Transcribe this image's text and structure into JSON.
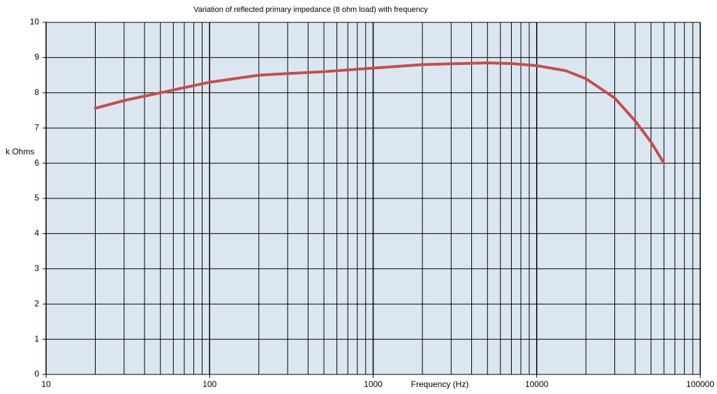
{
  "chart_data": {
    "type": "line",
    "title": "Variation of reflected primary impedance (8 ohm load) with frequency",
    "xlabel": "Frequency (Hz)",
    "ylabel": "k Ohms",
    "xscale": "log",
    "xlim": [
      10,
      100000
    ],
    "xticks": [
      10,
      100,
      1000,
      10000,
      100000
    ],
    "xminorticks": [
      20,
      30,
      40,
      50,
      60,
      70,
      80,
      90,
      200,
      300,
      400,
      500,
      600,
      700,
      800,
      900,
      2000,
      3000,
      4000,
      5000,
      6000,
      7000,
      8000,
      9000,
      20000,
      30000,
      40000,
      50000,
      60000,
      70000,
      80000,
      90000
    ],
    "ylim": [
      0,
      10
    ],
    "yticks": [
      0,
      1,
      2,
      3,
      4,
      5,
      6,
      7,
      8,
      9,
      10
    ],
    "grid": true,
    "background": "#dce6f1",
    "series": [
      {
        "name": "k Ohms",
        "color": "#c0504d",
        "x": [
          20,
          30,
          50,
          100,
          200,
          500,
          1000,
          2000,
          5000,
          7000,
          10000,
          15000,
          20000,
          30000,
          40000,
          50000,
          60000
        ],
        "values": [
          7.56,
          7.78,
          8.0,
          8.3,
          8.5,
          8.6,
          8.7,
          8.8,
          8.85,
          8.83,
          8.77,
          8.63,
          8.4,
          7.85,
          7.2,
          6.6,
          6.0
        ]
      }
    ]
  }
}
